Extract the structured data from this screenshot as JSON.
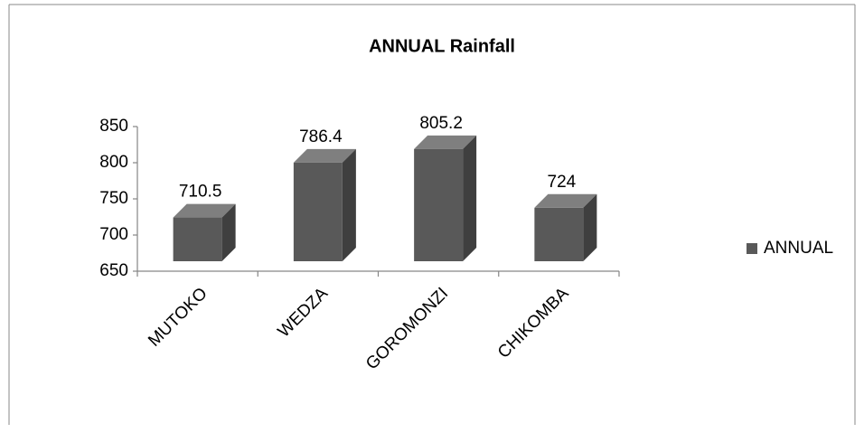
{
  "chart_data": {
    "type": "bar3d",
    "title": "ANNUAL Rainfall",
    "categories": [
      "MUTOKO",
      "WEDZA",
      "GOROMONZI",
      "CHIKOMBA"
    ],
    "series": [
      {
        "name": "ANNUAL",
        "color": "#595959",
        "values": [
          710.5,
          786.4,
          805.2,
          724
        ]
      }
    ],
    "ylim": [
      650,
      850
    ],
    "yticks": [
      650,
      700,
      750,
      800,
      850
    ],
    "grid": false,
    "legend": "right",
    "data_labels": true
  }
}
